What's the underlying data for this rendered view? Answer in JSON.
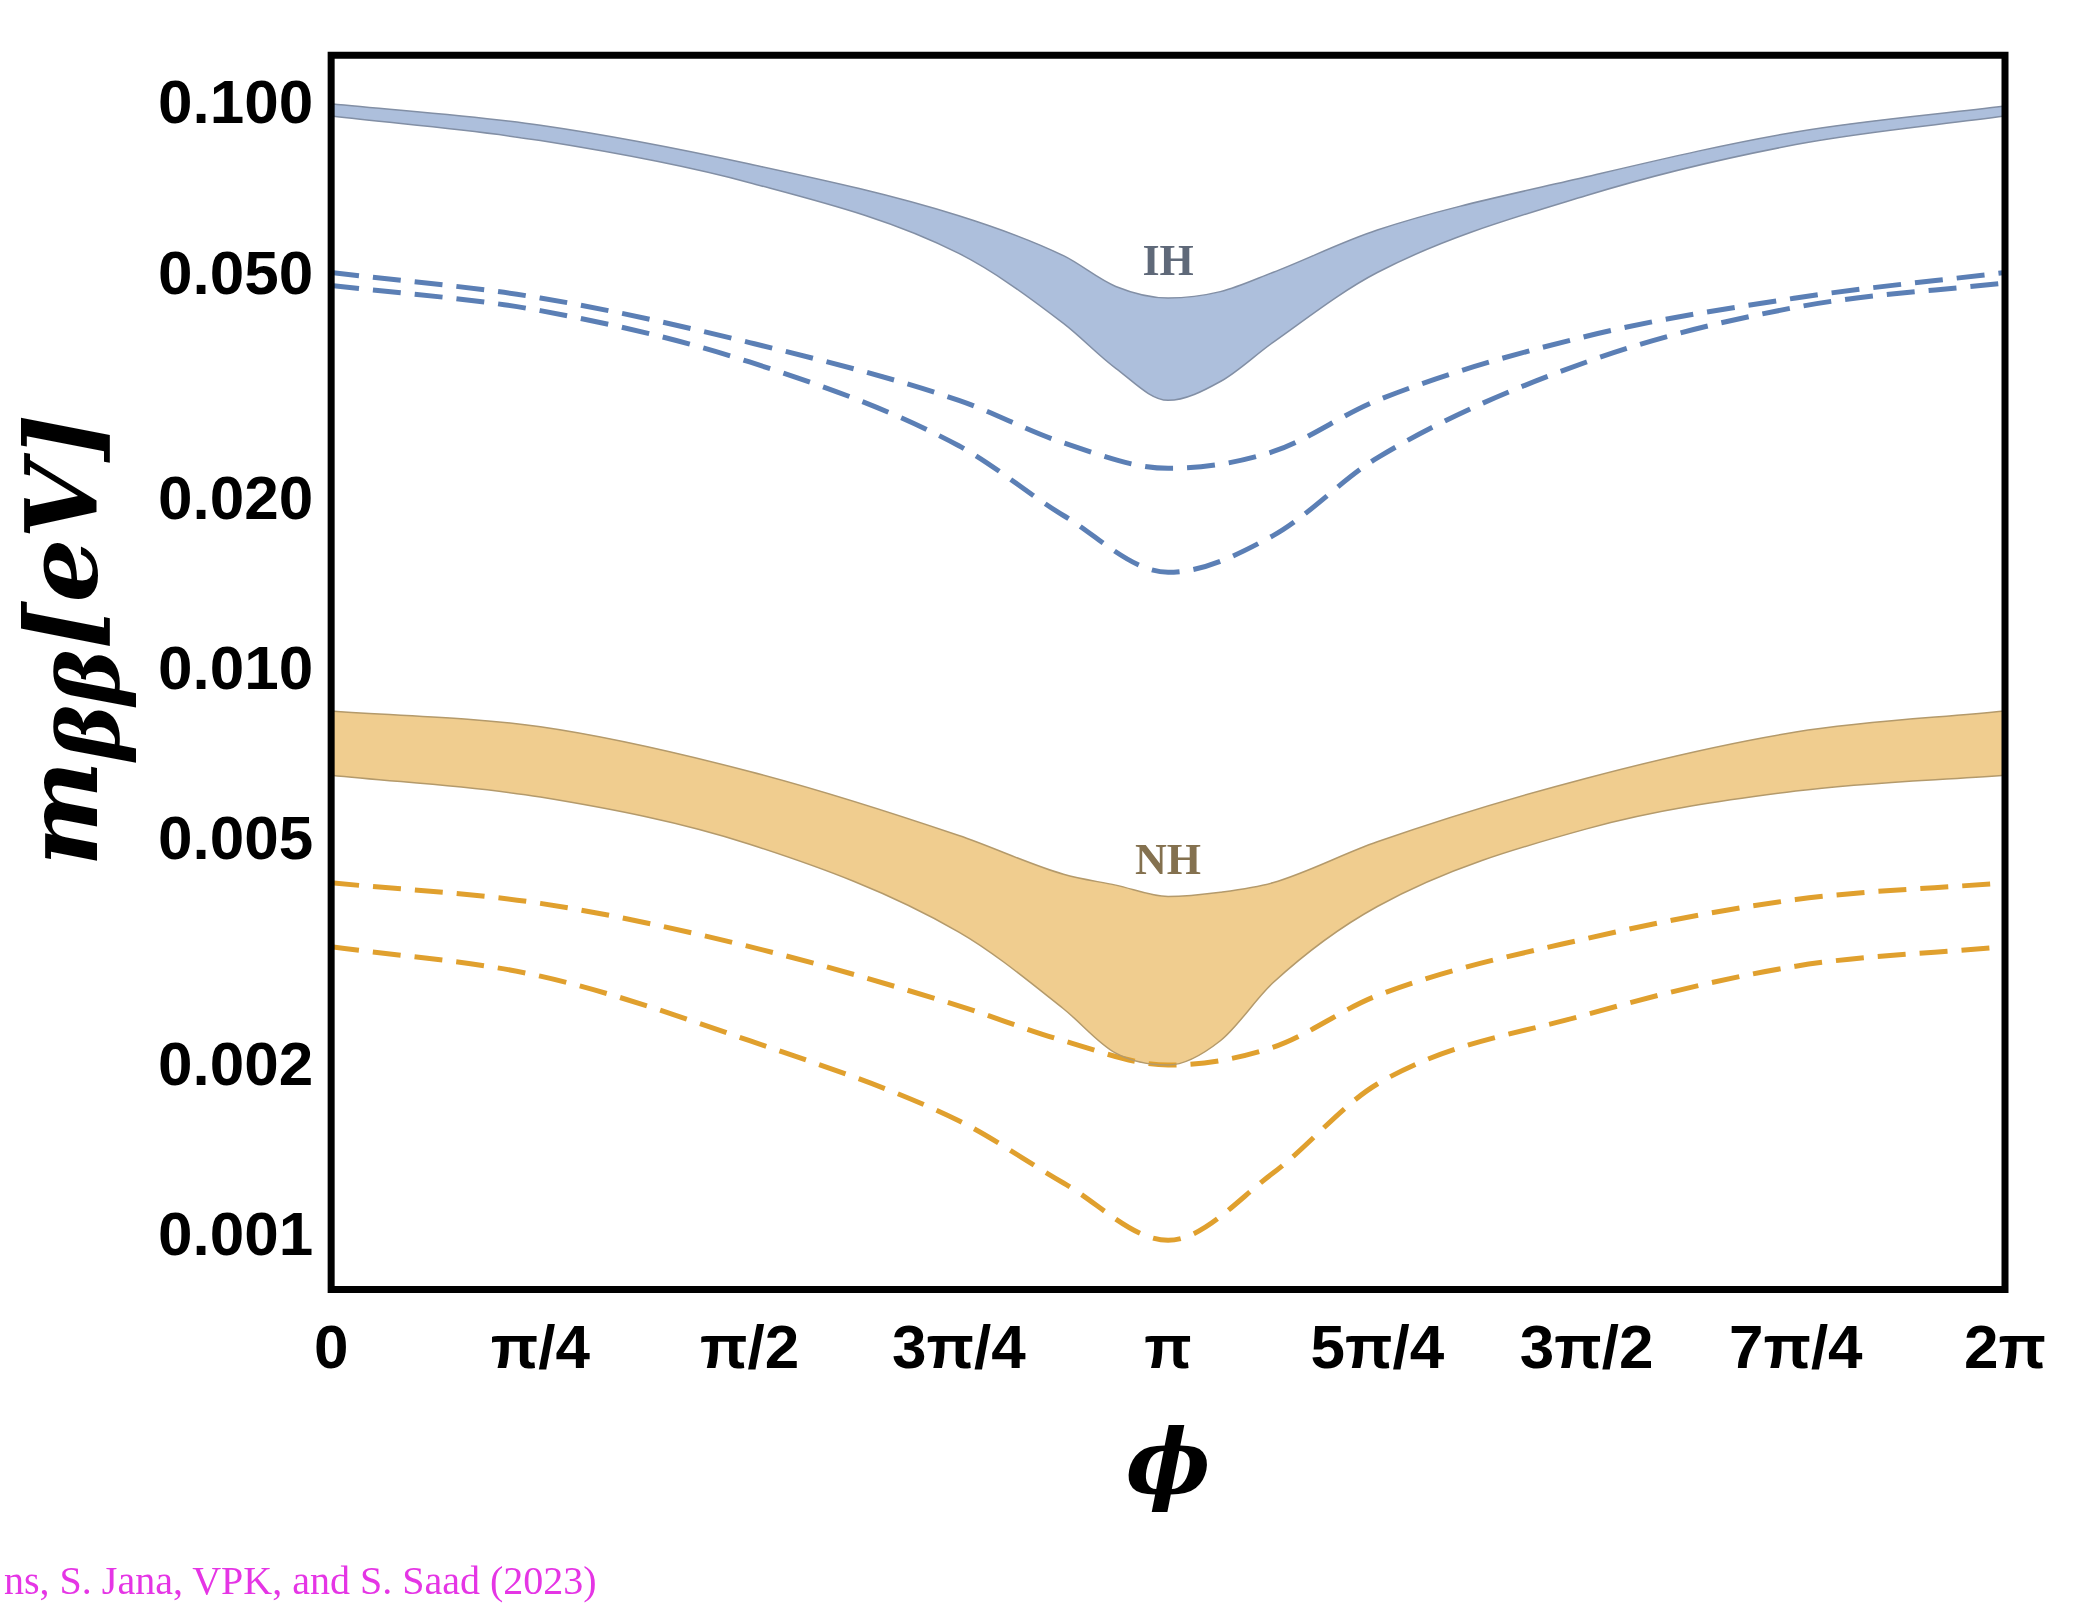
{
  "chart_data": {
    "type": "line",
    "xlabel": "ϕ",
    "ylabel": "m$_{ββ}$[eV]",
    "log": "y",
    "grid": false,
    "legend": false,
    "marker": "none",
    "xlim": [
      0,
      6.2832
    ],
    "ylim": [
      0.00081,
      0.123
    ],
    "xticks": [
      0,
      {
        "value": 0.7854,
        "label": "π/4"
      },
      {
        "value": 1.5708,
        "label": "π/2"
      },
      {
        "value": 2.3562,
        "label": "3π/4"
      },
      {
        "value": 3.1416,
        "label": "π"
      },
      {
        "value": 3.927,
        "label": "5π/4"
      },
      {
        "value": 4.7124,
        "label": "3π/2"
      },
      {
        "value": 5.4978,
        "label": "7π/4"
      },
      {
        "value": 6.2832,
        "label": "2π"
      }
    ],
    "yticks": [
      {
        "value": 0.001,
        "label": "0.001"
      },
      {
        "value": 0.002,
        "label": "0.002"
      },
      {
        "value": 0.005,
        "label": "0.005"
      },
      {
        "value": 0.01,
        "label": "0.010"
      },
      {
        "value": 0.02,
        "label": "0.020"
      },
      {
        "value": 0.05,
        "label": "0.050"
      },
      {
        "value": 0.1,
        "label": "0.100"
      }
    ],
    "series": [
      {
        "name": "IH",
        "type": "area",
        "color": "#adbfdc",
        "x": [
          0,
          0.7854,
          1.5708,
          2.3562,
          2.7489,
          2.9452,
          3.1416,
          3.3379,
          3.5343,
          3.927,
          4.7124,
          5.4978,
          6.2832
        ],
        "values": [
          0.101,
          0.0925,
          0.079,
          0.064,
          0.0544,
          0.048,
          0.0458,
          0.047,
          0.0508,
          0.0604,
          0.075,
          0.09,
          0.1
        ]
      },
      {
        "type": "line",
        "line_style": "solid",
        "color": "#828fa5",
        "x": [
          0,
          0.7854,
          1.5708,
          2.3562,
          2.7489,
          2.9452,
          3.1416,
          3.3379,
          3.5343,
          3.927,
          4.7124,
          5.4978,
          6.2832
        ],
        "values": [
          0.096,
          0.0869,
          0.0732,
          0.0549,
          0.0413,
          0.0344,
          0.0302,
          0.0326,
          0.0382,
          0.0508,
          0.0695,
          0.0855,
          0.096
        ]
      },
      {
        "name": "NH",
        "type": "area",
        "color": "#f0cd8f",
        "x": [
          0,
          0.7854,
          1.5708,
          2.3562,
          2.7489,
          2.9452,
          3.1416,
          3.3379,
          3.5343,
          3.927,
          4.7124,
          5.4978,
          6.2832
        ],
        "values": [
          0.00853,
          0.008,
          0.00667,
          0.00514,
          0.00439,
          0.0042,
          0.00401,
          0.00408,
          0.00424,
          0.00501,
          0.00649,
          0.00783,
          0.00853
        ]
      },
      {
        "type": "line",
        "line_style": "solid",
        "color": "#b49a6b",
        "x": [
          0,
          0.7854,
          1.5708,
          2.3562,
          2.7489,
          2.9452,
          3.1416,
          3.3379,
          3.5343,
          3.927,
          4.7124,
          5.4978,
          6.2832
        ],
        "values": [
          0.00657,
          0.00601,
          0.00496,
          0.00347,
          0.00254,
          0.00212,
          0.00202,
          0.00223,
          0.00282,
          0.00385,
          0.00528,
          0.00616,
          0.00657
        ]
      },
      {
        "type": "line",
        "line_style": "dashed",
        "color": "#5b7fb5",
        "x": [
          0,
          0.7854,
          1.5708,
          2.3562,
          2.7489,
          3.1416,
          3.5343,
          3.927,
          4.7124,
          5.4978,
          6.2832
        ],
        "values": [
          0.0508,
          0.0458,
          0.0382,
          0.0302,
          0.0254,
          0.0229,
          0.0245,
          0.0302,
          0.0392,
          0.0458,
          0.0508
        ]
      },
      {
        "type": "line",
        "line_style": "dashed",
        "color": "#5b7fb5",
        "x": [
          0,
          0.7854,
          1.5708,
          2.3562,
          2.7489,
          3.1416,
          3.5343,
          3.927,
          4.7124,
          5.4978,
          6.2832
        ],
        "values": [
          0.0482,
          0.0435,
          0.0353,
          0.0251,
          0.0189,
          0.015,
          0.0174,
          0.0239,
          0.0353,
          0.0441,
          0.0487
        ]
      },
      {
        "type": "line",
        "line_style": "dashed",
        "color": "#e0a02e",
        "x": [
          0,
          0.7854,
          1.5708,
          2.3562,
          2.7489,
          3.1416,
          3.5343,
          3.927,
          4.7124,
          5.4978,
          6.2832
        ],
        "values": [
          0.00424,
          0.0039,
          0.00327,
          0.00257,
          0.00223,
          0.00202,
          0.00217,
          0.00268,
          0.00338,
          0.00396,
          0.00424
        ]
      },
      {
        "type": "line",
        "line_style": "dashed",
        "color": "#e0a02e",
        "x": [
          0,
          0.7854,
          1.5708,
          2.3562,
          2.7489,
          3.1416,
          3.5343,
          3.927,
          4.7124,
          5.4978,
          6.2832
        ],
        "values": [
          0.00327,
          0.0029,
          0.00223,
          0.00161,
          0.00125,
          0.00099,
          0.0013,
          0.00187,
          0.00248,
          0.00302,
          0.00327
        ]
      }
    ],
    "annotations": [
      "ns, S. Jana, VPK, and S. Saad (2023)"
    ]
  }
}
